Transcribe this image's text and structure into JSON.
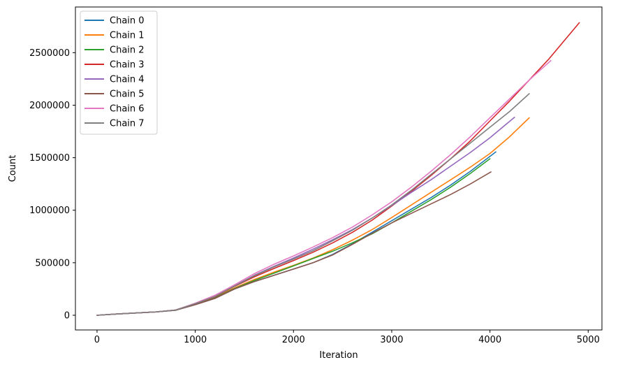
{
  "chart_data": {
    "type": "line",
    "title": "",
    "xlabel": "Iteration",
    "ylabel": "Count",
    "xlim": [
      -220,
      5140
    ],
    "ylim": [
      -140000,
      2935000
    ],
    "xticks": [
      0,
      1000,
      2000,
      3000,
      4000,
      5000
    ],
    "xtick_labels": [
      "0",
      "1000",
      "2000",
      "3000",
      "4000",
      "5000"
    ],
    "yticks": [
      0,
      500000,
      1000000,
      1500000,
      2000000,
      2500000
    ],
    "ytick_labels": [
      "0",
      "500000",
      "1000000",
      "1500000",
      "2000000",
      "2500000"
    ],
    "grid": false,
    "legend": "top-left",
    "series": [
      {
        "name": "Chain 0",
        "color": "#1f77b4",
        "x": [
          0,
          200,
          400,
          600,
          800,
          1000,
          1200,
          1400,
          1600,
          1800,
          2000,
          2200,
          2400,
          2600,
          2800,
          3000,
          3200,
          3400,
          3600,
          3800,
          4060
        ],
        "y": [
          0,
          12000,
          22000,
          32000,
          48000,
          100000,
          160000,
          250000,
          320000,
          380000,
          440000,
          500000,
          580000,
          680000,
          790000,
          900000,
          1010000,
          1120000,
          1240000,
          1370000,
          1555000
        ]
      },
      {
        "name": "Chain 1",
        "color": "#ff7f0e",
        "x": [
          0,
          200,
          400,
          600,
          800,
          1000,
          1200,
          1400,
          1600,
          1800,
          2000,
          2200,
          2400,
          2600,
          2800,
          3000,
          3200,
          3400,
          3600,
          3800,
          4000,
          4200,
          4400
        ],
        "y": [
          0,
          12000,
          22000,
          32000,
          50000,
          108000,
          170000,
          260000,
          340000,
          410000,
          475000,
          545000,
          625000,
          715000,
          815000,
          930000,
          1050000,
          1170000,
          1290000,
          1410000,
          1540000,
          1700000,
          1880000
        ]
      },
      {
        "name": "Chain 2",
        "color": "#2ca02c",
        "x": [
          0,
          200,
          400,
          600,
          800,
          1000,
          1200,
          1400,
          1600,
          1800,
          2000,
          2200,
          2400,
          2600,
          2800,
          3000,
          3200,
          3400,
          3600,
          3800,
          4000
        ],
        "y": [
          0,
          12000,
          22000,
          32000,
          48000,
          105000,
          165000,
          255000,
          330000,
          400000,
          470000,
          540000,
          610000,
          690000,
          775000,
          880000,
          990000,
          1100000,
          1220000,
          1350000,
          1490000
        ]
      },
      {
        "name": "Chain 3",
        "color": "#d62728",
        "x": [
          0,
          200,
          400,
          600,
          800,
          1000,
          1200,
          1400,
          1600,
          1800,
          2000,
          2200,
          2400,
          2600,
          2800,
          3000,
          3200,
          3400,
          3600,
          3800,
          4000,
          4200,
          4400,
          4600,
          4910
        ],
        "y": [
          0,
          12000,
          22000,
          32000,
          50000,
          110000,
          175000,
          275000,
          365000,
          445000,
          520000,
          600000,
          690000,
          790000,
          905000,
          1040000,
          1180000,
          1330000,
          1490000,
          1660000,
          1850000,
          2040000,
          2240000,
          2440000,
          2785000
        ]
      },
      {
        "name": "Chain 4",
        "color": "#9467bd",
        "x": [
          0,
          200,
          400,
          600,
          800,
          1000,
          1200,
          1400,
          1600,
          1800,
          2000,
          2200,
          2400,
          2600,
          2800,
          3000,
          3200,
          3400,
          3600,
          3800,
          4000,
          4250
        ],
        "y": [
          0,
          12000,
          22000,
          32000,
          50000,
          110000,
          180000,
          280000,
          380000,
          465000,
          545000,
          630000,
          720000,
          815000,
          925000,
          1045000,
          1170000,
          1290000,
          1420000,
          1550000,
          1690000,
          1885000
        ]
      },
      {
        "name": "Chain 5",
        "color": "#8c564b",
        "x": [
          0,
          200,
          400,
          600,
          800,
          1000,
          1200,
          1400,
          1600,
          1800,
          2000,
          2200,
          2400,
          2600,
          2800,
          3000,
          3200,
          3400,
          3600,
          3800,
          4010
        ],
        "y": [
          0,
          12000,
          22000,
          32000,
          48000,
          100000,
          160000,
          250000,
          320000,
          380000,
          440000,
          500000,
          575000,
          675000,
          780000,
          880000,
          970000,
          1060000,
          1150000,
          1250000,
          1365000
        ]
      },
      {
        "name": "Chain 6",
        "color": "#e377c2",
        "x": [
          0,
          200,
          400,
          600,
          800,
          1000,
          1200,
          1400,
          1600,
          1800,
          2000,
          2200,
          2400,
          2600,
          2800,
          3000,
          3200,
          3400,
          3600,
          3800,
          4000,
          4200,
          4400,
          4620
        ],
        "y": [
          0,
          12000,
          22000,
          32000,
          50000,
          115000,
          190000,
          290000,
          395000,
          485000,
          565000,
          650000,
          740000,
          840000,
          955000,
          1080000,
          1220000,
          1370000,
          1530000,
          1700000,
          1880000,
          2060000,
          2240000,
          2425000
        ]
      },
      {
        "name": "Chain 7",
        "color": "#7f7f7f",
        "x": [
          0,
          200,
          400,
          600,
          800,
          1000,
          1200,
          1400,
          1600,
          1800,
          2000,
          2200,
          2400,
          2600,
          2800,
          3000,
          3200,
          3400,
          3600,
          3800,
          4000,
          4200,
          4400
        ],
        "y": [
          0,
          12000,
          22000,
          32000,
          50000,
          110000,
          178000,
          278000,
          375000,
          460000,
          535000,
          615000,
          710000,
          810000,
          925000,
          1050000,
          1190000,
          1340000,
          1490000,
          1640000,
          1790000,
          1940000,
          2110000
        ]
      }
    ]
  }
}
